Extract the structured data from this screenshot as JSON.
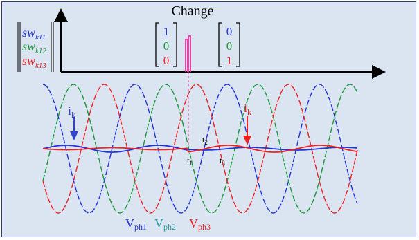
{
  "title": "Change",
  "switch_labels": [
    {
      "base": "sw",
      "sub": "k11",
      "color": "#2233dd"
    },
    {
      "base": "sw",
      "sub": "k12",
      "color": "#1a9a3a"
    },
    {
      "base": "sw",
      "sub": "k13",
      "color": "#ee2222"
    }
  ],
  "state_before": [
    "1",
    "0",
    "0"
  ],
  "state_after": [
    "0",
    "0",
    "1"
  ],
  "current_labels": [
    {
      "base": "i",
      "sub": "k",
      "color": "#3344cc"
    },
    {
      "base": "i",
      "sub": "k",
      "color": "#ee2222"
    }
  ],
  "time_labels": [
    "t1",
    "t2",
    "t3"
  ],
  "phase_legend": [
    {
      "base": "V",
      "sub": "ph1",
      "color": "#2233dd"
    },
    {
      "base": "V",
      "sub": "ph2",
      "color": "#20a0a0"
    },
    {
      "base": "V",
      "sub": "ph3",
      "color": "#ee2222"
    }
  ],
  "colors": {
    "background": "#dbe4f1",
    "border": "#2a3a7a",
    "phase1": "#2233dd",
    "phase2": "#1a9a3a",
    "phase3": "#ee2222",
    "pulse": "#ee3399"
  }
}
